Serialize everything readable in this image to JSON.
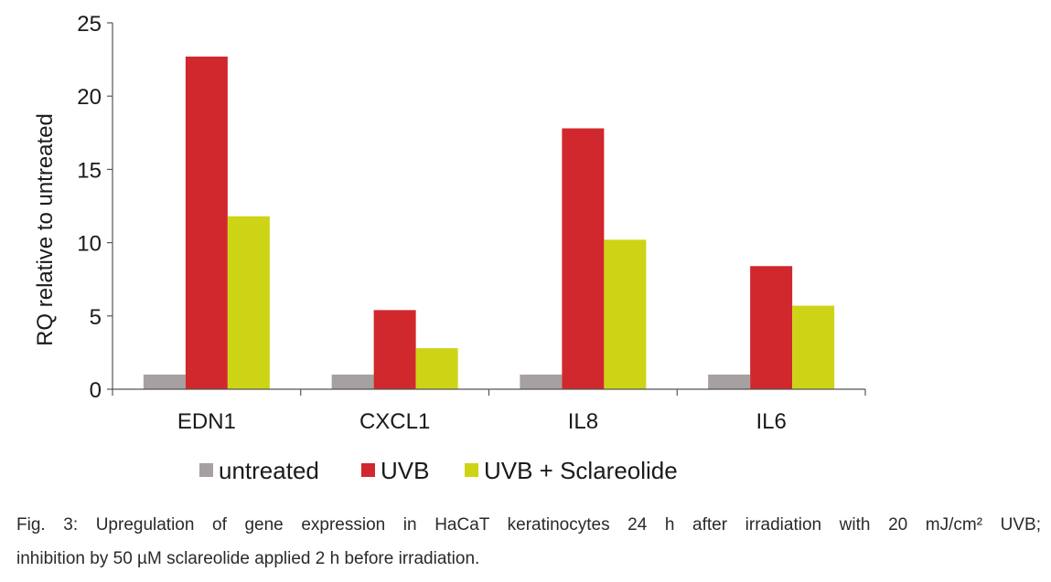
{
  "chart_data": {
    "type": "bar",
    "title": "",
    "xlabel": "",
    "ylabel": "RQ relative to untreated",
    "ylim": [
      0,
      25
    ],
    "yticks": [
      0,
      5,
      10,
      15,
      20,
      25
    ],
    "categories": [
      "EDN1",
      "CXCL1",
      "IL8",
      "IL6"
    ],
    "series": [
      {
        "name": "untreated",
        "color": "#a6a0a0",
        "values": [
          1,
          1,
          1,
          1
        ]
      },
      {
        "name": "UVB",
        "color": "#d0282c",
        "values": [
          22.7,
          5.4,
          17.8,
          8.4
        ]
      },
      {
        "name": "UVB + Sclareolide",
        "color": "#cdd416",
        "values": [
          11.8,
          2.8,
          10.2,
          5.7
        ]
      }
    ],
    "grid": false,
    "legend_position": "bottom"
  },
  "caption": {
    "line1": "Fig. 3: Upregulation of gene expression in HaCaT keratinocytes 24 h after irradiation with 20 mJ/cm² UVB;",
    "line2": "inhibition by 50 µM sclareolide applied 2 h before irradiation."
  }
}
